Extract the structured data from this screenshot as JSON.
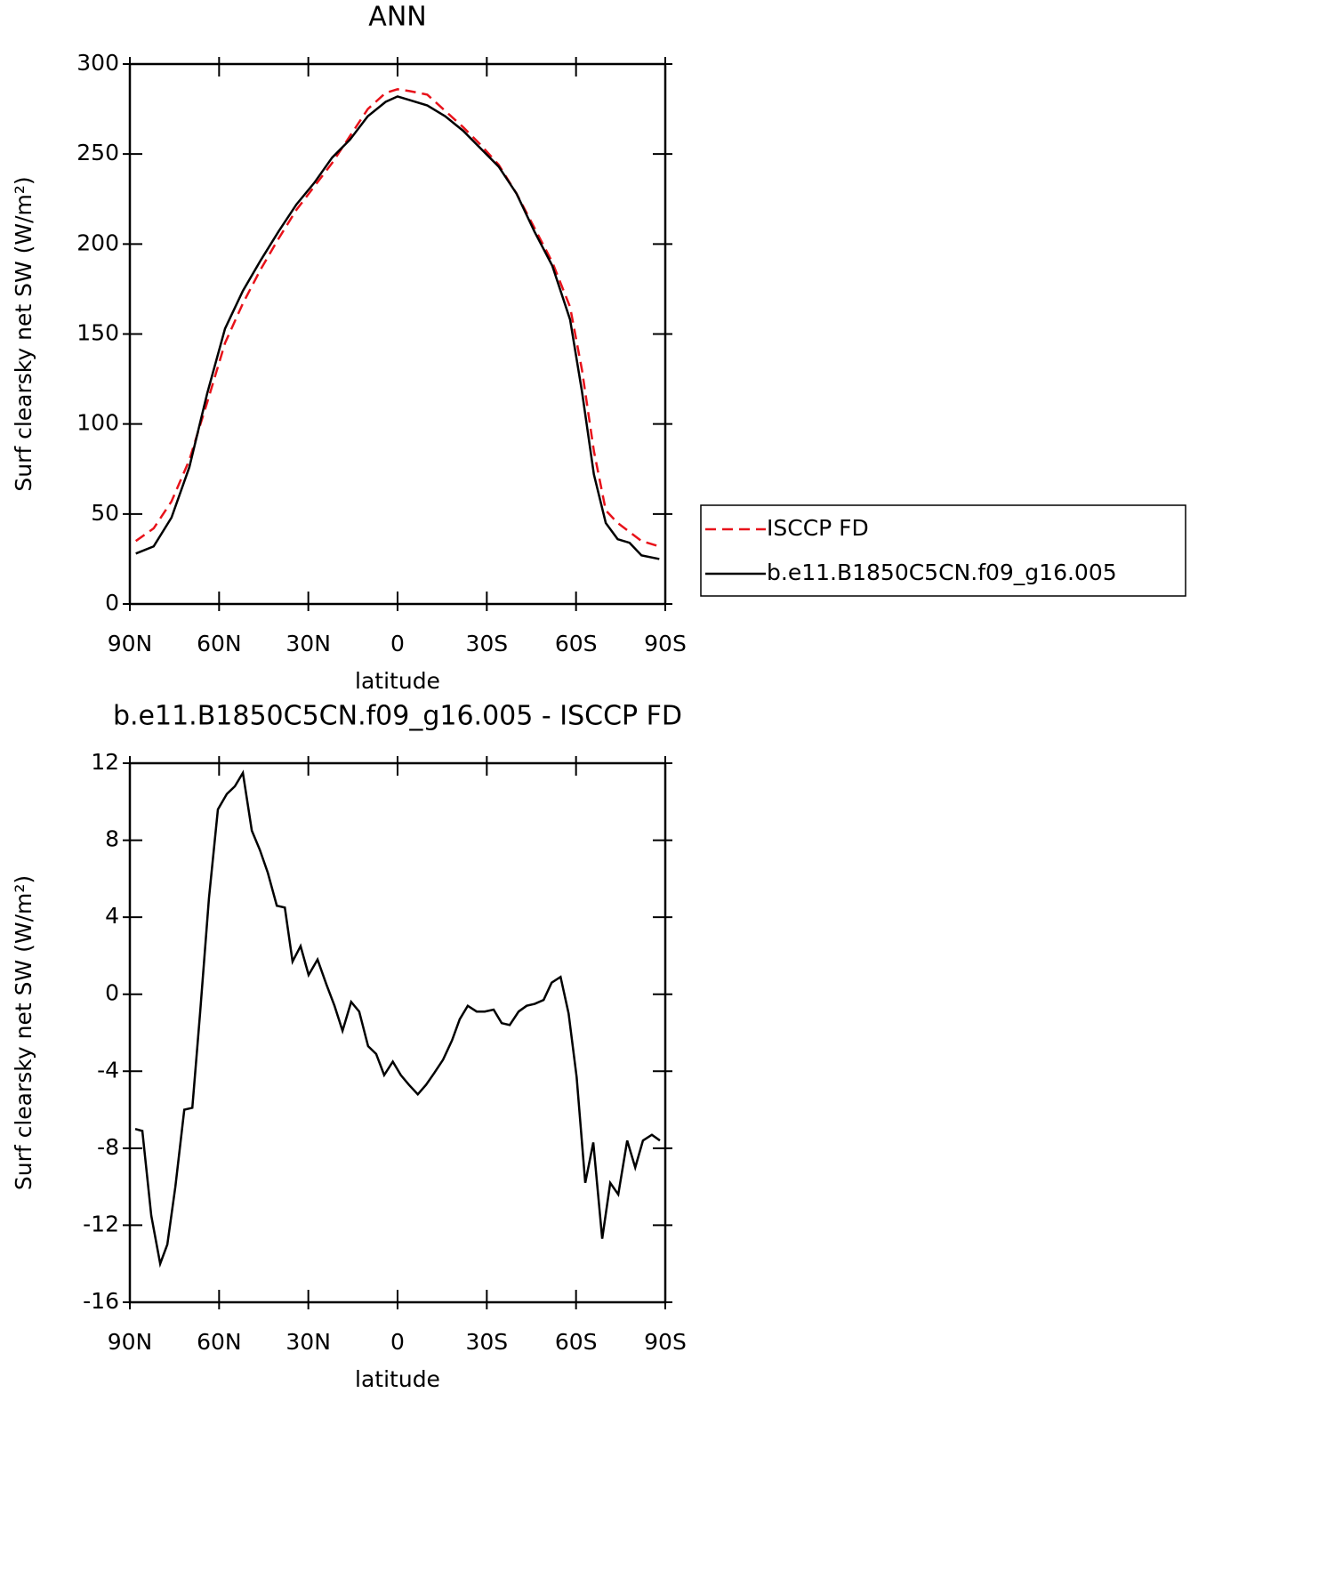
{
  "chart_data": [
    {
      "type": "line",
      "title": "ANN",
      "xlabel": "latitude",
      "ylabel": "Surf clearsky net SW (W/m²)",
      "x": [
        88,
        82,
        76,
        70,
        64,
        58,
        52,
        46,
        40,
        34,
        28,
        22,
        16,
        10,
        4,
        0,
        -4,
        -10,
        -16,
        -22,
        -28,
        -34,
        -40,
        -46,
        -52,
        -58,
        -62,
        -66,
        -70,
        -74,
        -78,
        -82,
        -88
      ],
      "series": [
        {
          "name": "ISCCP FD",
          "color": "#e8121a",
          "line_style": "dashed",
          "values": [
            35,
            42,
            57,
            80,
            112,
            145,
            167,
            186,
            203,
            219,
            232,
            245,
            260,
            275,
            284,
            286,
            285,
            283,
            274,
            265,
            255,
            244,
            228,
            209,
            190,
            165,
            130,
            85,
            52,
            45,
            40,
            35,
            32
          ]
        },
        {
          "name": "b.e11.B1850C5CN.f09_g16.005",
          "color": "#000000",
          "line_style": "solid",
          "values": [
            28,
            32,
            48,
            76,
            117,
            153,
            174,
            191,
            207,
            222,
            234,
            248,
            258,
            271,
            279,
            282,
            280,
            277,
            271,
            263,
            253,
            243,
            228,
            207,
            188,
            158,
            118,
            72,
            45,
            36,
            34,
            27,
            25
          ]
        }
      ],
      "xlim": [
        90,
        -90
      ],
      "xticks": [
        {
          "value": 90,
          "label": "90N"
        },
        {
          "value": 60,
          "label": "60N"
        },
        {
          "value": 30,
          "label": "30N"
        },
        0,
        {
          "value": -30,
          "label": "30S"
        },
        {
          "value": -60,
          "label": "60S"
        },
        {
          "value": -90,
          "label": "90S"
        }
      ],
      "ylim": [
        0,
        300
      ],
      "yticks": [
        0,
        50,
        100,
        150,
        200,
        250,
        300
      ],
      "legend": "right"
    },
    {
      "type": "line",
      "title": "b.e11.B1850C5CN.f09_g16.005 - ISCCP FD",
      "xlabel": "latitude",
      "ylabel": "Surf clearsky net SW (W/m²)",
      "x": [
        88.2,
        85.8,
        82.8,
        79.8,
        77.4,
        74.7,
        71.7,
        69.0,
        66.4,
        63.4,
        60.4,
        57.4,
        54.7,
        52.0,
        49.0,
        46.3,
        43.6,
        40.6,
        37.9,
        35.3,
        32.6,
        29.9,
        26.9,
        23.9,
        21.2,
        18.5,
        15.6,
        12.9,
        9.9,
        7.2,
        4.5,
        1.6,
        -1.1,
        -3.8,
        -6.8,
        -9.6,
        -12.3,
        -15.3,
        -18.3,
        -20.9,
        -23.6,
        -26.6,
        -29.3,
        -32.3,
        -35.0,
        -37.7,
        -40.7,
        -43.4,
        -46.1,
        -49.1,
        -51.8,
        -54.8,
        -57.5,
        -60.2,
        -63.1,
        -65.8,
        -68.8,
        -71.5,
        -74.2,
        -77.2,
        -79.9,
        -82.5,
        -85.5,
        -88.2
      ],
      "values": [
        -7.0,
        -7.1,
        -11.5,
        -14.0,
        -13.0,
        -10.0,
        -6.0,
        -5.9,
        -1.0,
        5.0,
        9.6,
        10.4,
        10.8,
        11.5,
        8.5,
        7.5,
        6.3,
        4.6,
        4.5,
        1.7,
        2.5,
        1.0,
        1.8,
        0.5,
        -0.6,
        -1.9,
        -0.4,
        -0.9,
        -2.7,
        -3.1,
        -4.2,
        -3.5,
        -4.2,
        -4.7,
        -5.2,
        -4.7,
        -4.1,
        -3.4,
        -2.4,
        -1.3,
        -0.6,
        -0.9,
        -0.9,
        -0.8,
        -1.5,
        -1.6,
        -0.9,
        -0.6,
        -0.5,
        -0.3,
        0.6,
        0.9,
        -1.0,
        -4.3,
        -9.8,
        -7.7,
        -12.7,
        -9.8,
        -10.4,
        -7.6,
        -9.0,
        -7.6,
        -7.3,
        -7.6
      ],
      "color": "#000000",
      "xlim": [
        90,
        -90
      ],
      "xticks": [
        {
          "value": 90,
          "label": "90N"
        },
        {
          "value": 60,
          "label": "60N"
        },
        {
          "value": 30,
          "label": "30N"
        },
        0,
        {
          "value": -30,
          "label": "30S"
        },
        {
          "value": -60,
          "label": "60S"
        },
        {
          "value": -90,
          "label": "90S"
        }
      ],
      "ylim": [
        -16,
        12
      ],
      "yticks": [
        -16,
        -12,
        -8,
        -4,
        0,
        4,
        8,
        12
      ]
    }
  ]
}
